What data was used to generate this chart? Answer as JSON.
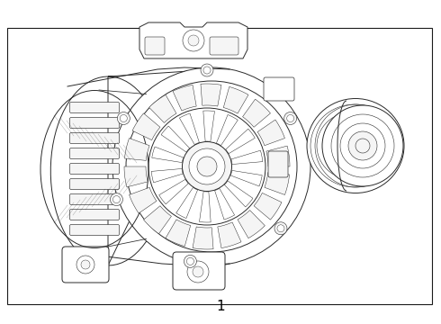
{
  "label_number": "1",
  "background_color": "#ffffff",
  "border_color": "#1a1a1a",
  "line_color": "#2a2a2a",
  "fill_color": "#ffffff",
  "light_fill": "#f5f5f5",
  "fig_width": 4.9,
  "fig_height": 3.6,
  "dpi": 100,
  "border_lw": 0.8,
  "main_lw": 0.7,
  "thin_lw": 0.4
}
